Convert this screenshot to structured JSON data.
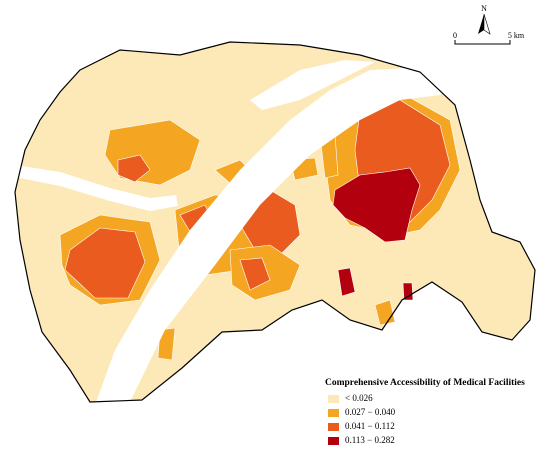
{
  "map": {
    "north_label": "N",
    "scale_bar": {
      "start": "0",
      "end": "5 km"
    },
    "legend": {
      "title": "Comprehensive Accessibility of Medical Facilities",
      "items": [
        {
          "label": "< 0.026",
          "color": "#fde8b8"
        },
        {
          "label": "0.027 − 0.040",
          "color": "#f4a623"
        },
        {
          "label": "0.041 − 0.112",
          "color": "#ea5b1f"
        },
        {
          "label": "0.113 − 0.282",
          "color": "#b3000f"
        }
      ]
    }
  }
}
